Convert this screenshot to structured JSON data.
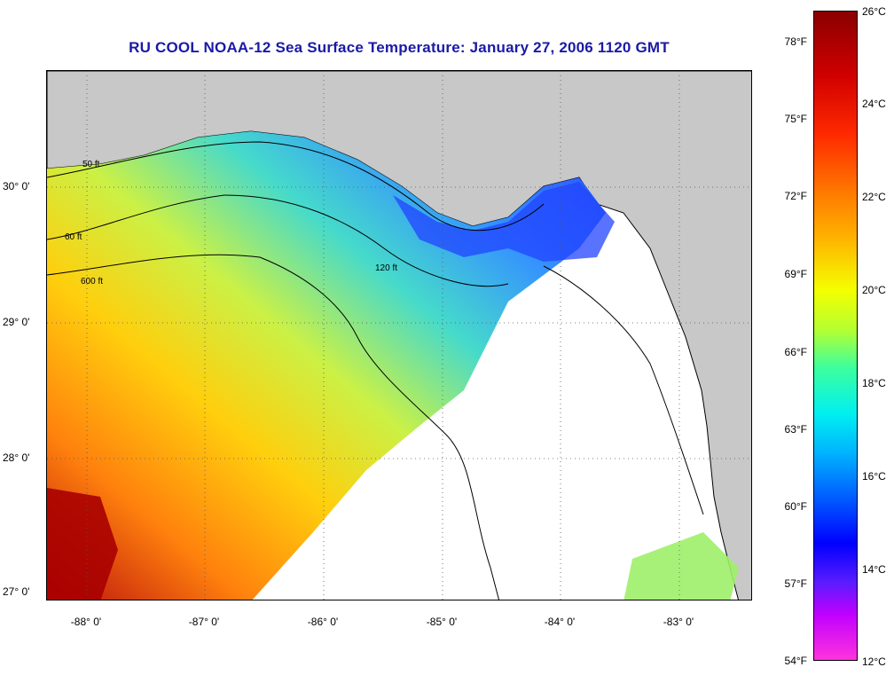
{
  "title": "RU COOL  NOAA-12  Sea Surface Temperature:  January 27, 2006 1120 GMT",
  "map": {
    "lat_labels": [
      "30° 0'",
      "29° 0'",
      "28° 0'",
      "27° 0'"
    ],
    "lon_labels": [
      "-88° 0'",
      "-87° 0'",
      "-86° 0'",
      "-85° 0'",
      "-84° 0'",
      "-83° 0'"
    ],
    "contour_labels": [
      "50 ft",
      "60 ft",
      "120 ft",
      "600 ft"
    ],
    "land_color": "#c8c8c8",
    "cloud_mask_color": "#ffffff"
  },
  "colorbar": {
    "fahrenheit_labels": [
      "78°F",
      "75°F",
      "72°F",
      "69°F",
      "66°F",
      "63°F",
      "60°F",
      "57°F",
      "54°F"
    ],
    "celsius_labels": [
      "26°C",
      "24°C",
      "22°C",
      "20°C",
      "18°C",
      "16°C",
      "14°C",
      "12°C"
    ],
    "range_c": [
      12,
      26
    ]
  }
}
